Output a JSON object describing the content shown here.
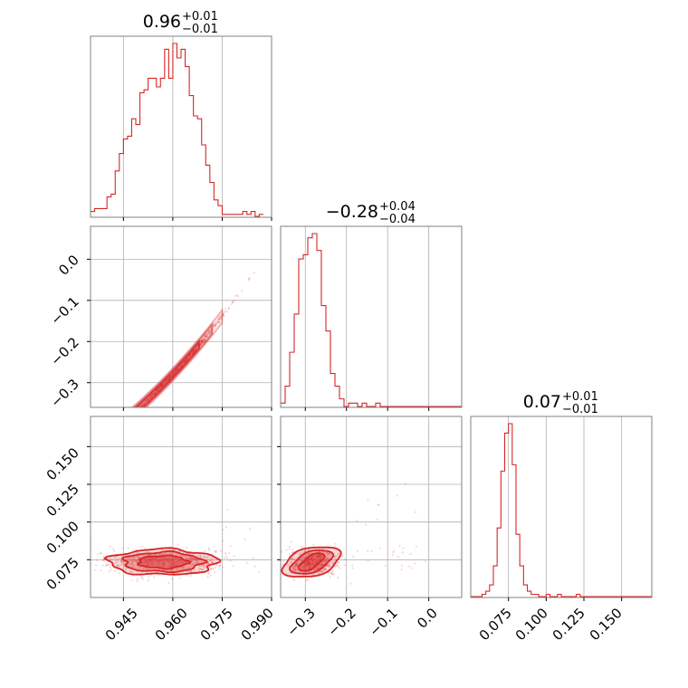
{
  "chart_data": {
    "type": "corner",
    "colors": {
      "accent": "#d62728",
      "grid": "#b0b0b0",
      "frame": "#808080"
    },
    "grid": true,
    "parameters": [
      {
        "title_main": "0.96",
        "title_upper": "+0.01",
        "title_lower": "−0.01",
        "range": [
          0.935,
          0.99
        ],
        "ticks": [
          0.945,
          0.96,
          0.975,
          0.99
        ],
        "tick_labels": [
          "0.945",
          "0.960",
          "0.975",
          "0.990"
        ],
        "histogram": {
          "edges_start": 0.935,
          "bin_width": 0.00125,
          "counts": [
            2,
            3,
            3,
            3,
            7,
            8,
            16,
            22,
            27,
            28,
            34,
            32,
            43,
            44,
            48,
            48,
            45,
            48,
            58,
            48,
            60,
            55,
            58,
            52,
            42,
            35,
            34,
            25,
            18,
            12,
            6,
            4,
            1,
            1,
            1,
            1,
            1,
            2,
            1,
            2,
            0,
            1
          ]
        }
      },
      {
        "title_main": "−0.28",
        "title_upper": "+0.04",
        "title_lower": "−0.04",
        "range": [
          -0.36,
          0.08
        ],
        "ticks": [
          -0.3,
          -0.2,
          -0.1,
          0.0
        ],
        "tick_labels": [
          "−0.3",
          "−0.2",
          "−0.1",
          "0.0"
        ],
        "y_ticks": [
          0.0,
          -0.1,
          -0.2,
          -0.3
        ],
        "y_tick_labels": [
          "0.0",
          "−0.1",
          "−0.2",
          "−0.3"
        ],
        "histogram": {
          "edges_start": -0.36,
          "bin_width": 0.011,
          "counts": [
            1,
            5,
            13,
            22,
            35,
            36,
            40,
            41,
            37,
            24,
            18,
            8,
            5,
            2,
            0,
            1,
            1,
            0,
            1,
            0,
            0,
            1,
            0,
            0,
            0,
            0,
            0,
            0,
            0,
            0,
            0,
            0,
            0,
            0,
            0,
            0,
            0,
            0,
            0,
            0
          ]
        }
      },
      {
        "title_main": "0.07",
        "title_upper": "+0.01",
        "title_lower": "−0.01",
        "range": [
          0.05,
          0.17
        ],
        "ticks": [
          0.075,
          0.1,
          0.125,
          0.15
        ],
        "tick_labels": [
          "0.075",
          "0.100",
          "0.125",
          "0.150"
        ],
        "y_tick_labels": [
          "0.075",
          "0.100",
          "0.125",
          "0.150"
        ],
        "histogram": {
          "edges_start": 0.05,
          "bin_width": 0.0025,
          "counts": [
            0,
            0,
            0,
            1,
            2,
            4,
            10,
            22,
            40,
            52,
            55,
            42,
            20,
            10,
            4,
            2,
            1,
            1,
            0,
            0,
            1,
            0,
            0,
            1,
            0,
            0,
            0,
            0,
            1,
            0,
            0,
            0,
            0,
            0,
            0,
            0,
            0,
            0,
            0,
            0,
            0,
            0,
            0,
            0,
            0,
            0,
            0,
            0
          ]
        }
      }
    ],
    "relations": {
      "p2_vs_p1": "p2 = -0.28 + 8.5*(p1-0.96) + 60*(p1-0.96)^2",
      "p3_vs_p1": "p3 ~ 0.0735 (flat, weakly correlated)"
    }
  }
}
